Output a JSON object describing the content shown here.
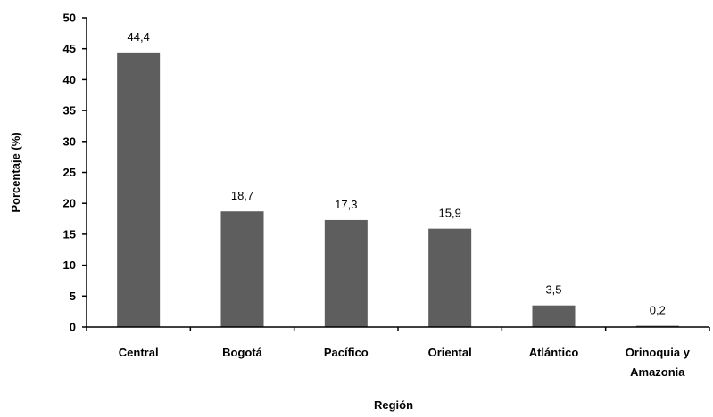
{
  "chart_data": {
    "type": "bar",
    "categories": [
      [
        "Central"
      ],
      [
        "Bogotá"
      ],
      [
        "Pacífico"
      ],
      [
        "Oriental"
      ],
      [
        "Atlántico"
      ],
      [
        "Orinoquia y",
        "Amazonia"
      ]
    ],
    "values": [
      44.4,
      18.7,
      17.3,
      15.9,
      3.5,
      0.2
    ],
    "data_labels": [
      "44,4",
      "18,7",
      "17,3",
      "15,9",
      "3,5",
      "0,2"
    ],
    "xlabel": "Región",
    "ylabel": "Porcentaje (%)",
    "ylim": [
      0,
      50
    ],
    "yticks": [
      0,
      5,
      10,
      15,
      20,
      25,
      30,
      35,
      40,
      45,
      50
    ],
    "grid": false,
    "bar_color": "#5e5e5e"
  }
}
